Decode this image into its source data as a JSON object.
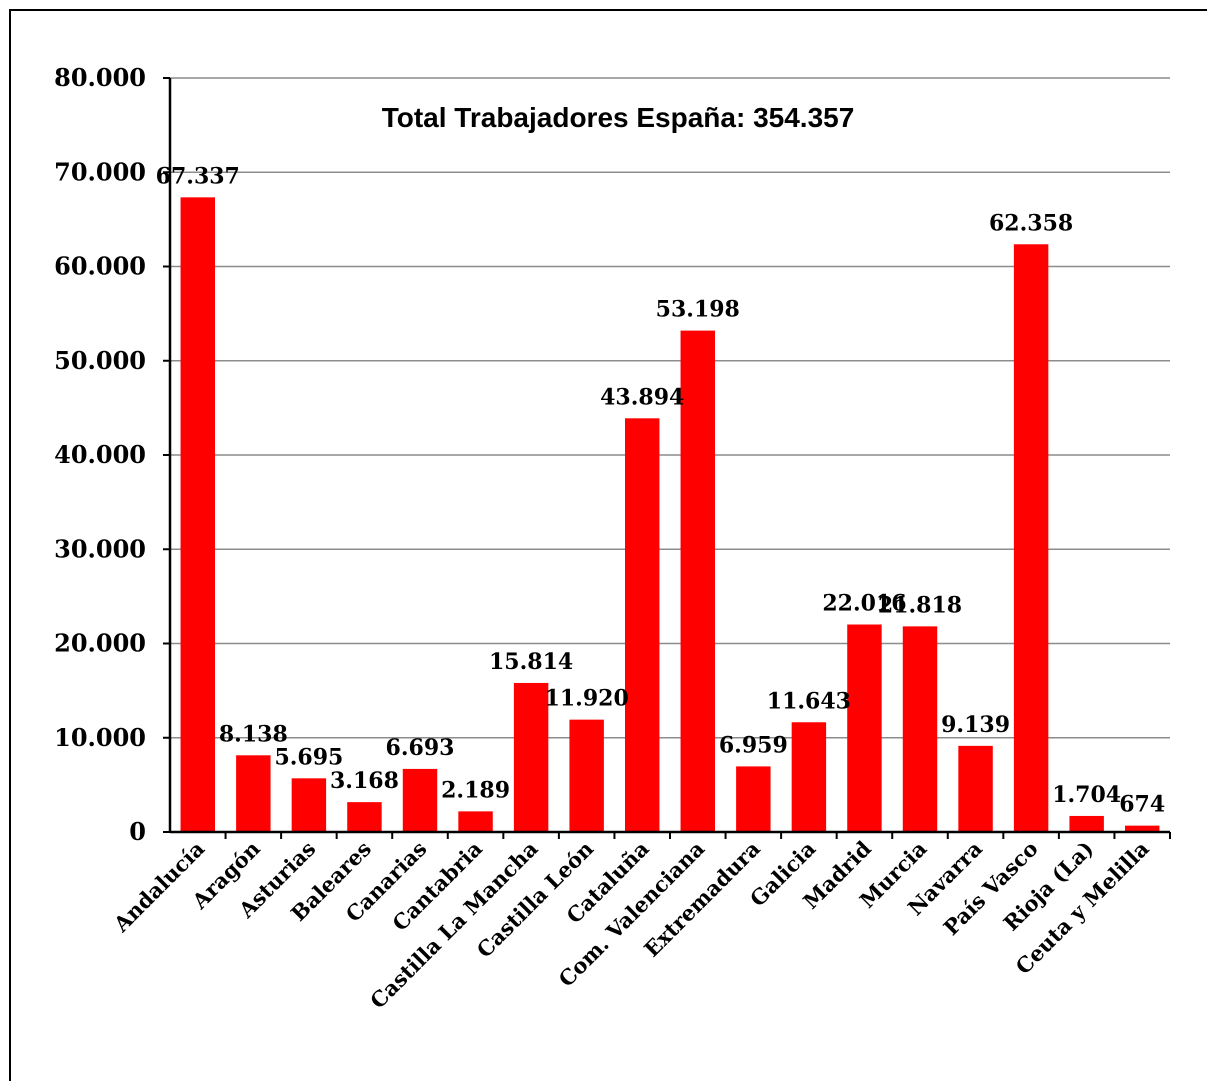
{
  "chart_data": {
    "type": "bar",
    "title": "Total Trabajadores España: 354.357",
    "xlabel": "",
    "ylabel": "",
    "ylim": [
      0,
      80000
    ],
    "yticks": [
      0,
      10000,
      20000,
      30000,
      40000,
      50000,
      60000,
      70000,
      80000
    ],
    "ytick_labels": [
      "0",
      "10.000",
      "20.000",
      "30.000",
      "40.000",
      "50.000",
      "60.000",
      "70.000",
      "80.000"
    ],
    "grid": true,
    "legend": "none",
    "bar_color": "#ff0000",
    "categories": [
      "Andalucía",
      "Aragón",
      "Asturias",
      "Baleares",
      "Canarias",
      "Cantabria",
      "Castilla La Mancha",
      "Castilla León",
      "Cataluña",
      "Com. Valenciana",
      "Extremadura",
      "Galicia",
      "Madrid",
      "Murcia",
      "Navarra",
      "País Vasco",
      "Rioja (La)",
      "Ceuta y Melilla"
    ],
    "values": [
      67337,
      8138,
      5695,
      3168,
      6693,
      2189,
      15814,
      11920,
      43894,
      53198,
      6959,
      11643,
      22016,
      21818,
      9139,
      62358,
      1704,
      674
    ],
    "value_labels": [
      "67.337",
      "8.138",
      "5.695",
      "3.168",
      "6.693",
      "2.189",
      "15.814",
      "11.920",
      "43.894",
      "53.198",
      "6.959",
      "11.643",
      "22.016",
      "21.818",
      "9.139",
      "62.358",
      "1.704",
      "674"
    ]
  }
}
